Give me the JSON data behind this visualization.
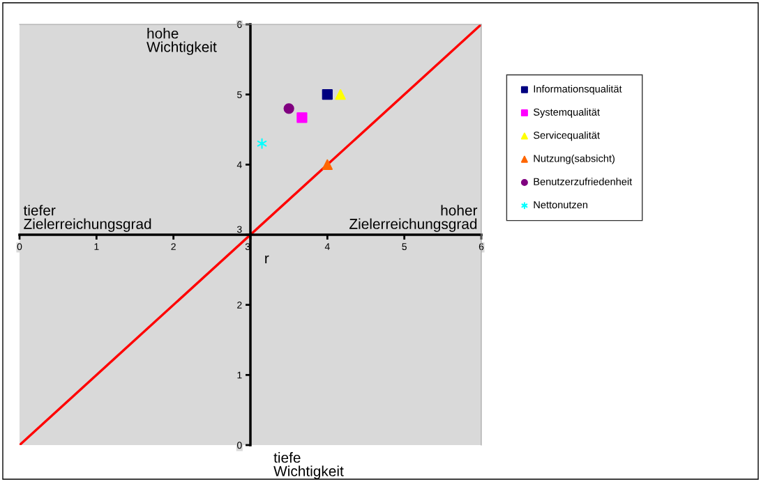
{
  "chart_data": {
    "type": "scatter",
    "xlim": [
      0,
      6
    ],
    "ylim": [
      0,
      6
    ],
    "xticks": [
      0,
      1,
      2,
      3,
      4,
      5,
      6
    ],
    "yticks": [
      0,
      1,
      2,
      3,
      4,
      5,
      6
    ],
    "grid": false,
    "legend": "right",
    "series": [
      {
        "name": "Informationsqualität",
        "color": "#000080",
        "marker": "square",
        "x": [
          4.0
        ],
        "values": [
          5.0
        ]
      },
      {
        "name": "Systemqualität",
        "color": "#ff00ff",
        "marker": "square",
        "x": [
          3.67
        ],
        "values": [
          4.67
        ]
      },
      {
        "name": "Servicequalität",
        "color": "#ffff00",
        "marker": "triangle",
        "x": [
          4.17
        ],
        "values": [
          5.0
        ]
      },
      {
        "name": "Nutzung(sabsicht)",
        "color": "#ff6600",
        "marker": "triangle",
        "x": [
          4.0
        ],
        "values": [
          4.0
        ]
      },
      {
        "name": "Benutzerzufriedenheit",
        "color": "#800080",
        "marker": "circle",
        "x": [
          3.5
        ],
        "values": [
          4.8
        ]
      },
      {
        "name": "Nettonutzen",
        "color": "#00ffff",
        "marker": "cross",
        "x": [
          3.15
        ],
        "values": [
          4.3
        ]
      },
      {
        "type": "line",
        "color": "#ff0000",
        "marker": "none",
        "x": [
          0,
          6
        ],
        "values": [
          0,
          6
        ]
      }
    ],
    "annotations": [
      "hohe\nWichtigkeit",
      "tiefe\nWichtigkeit",
      "tiefer\nZielerreichungsgrad",
      "hoher\nZielerreichungsgrad",
      "r"
    ]
  }
}
